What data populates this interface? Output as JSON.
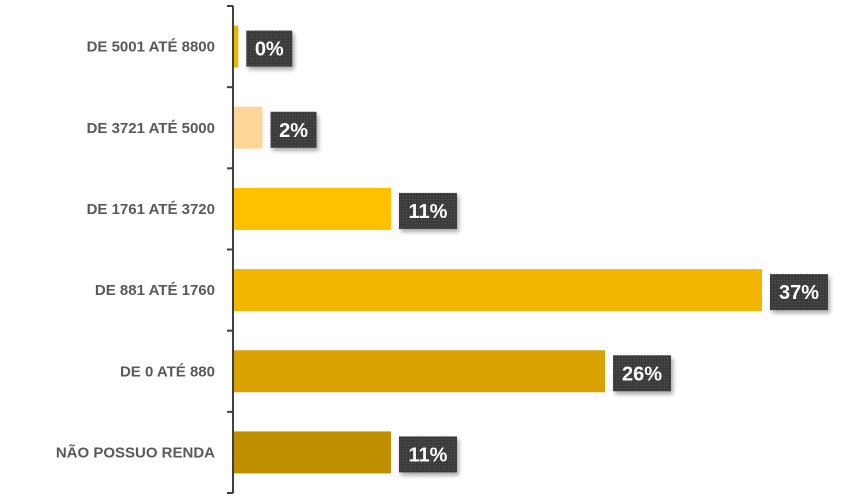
{
  "chart_data": {
    "type": "bar",
    "orientation": "horizontal",
    "title": "",
    "xlabel": "",
    "ylabel": "",
    "categories": [
      "DE 5001 ATÉ 8800",
      "DE 3721 ATÉ 5000",
      "DE 1761 ATÉ 3720",
      "DE 881 ATÉ 1760",
      "DE 0 ATÉ 880",
      "NÃO POSSUO RENDA"
    ],
    "values": [
      0.3,
      2,
      11,
      37,
      26,
      11
    ],
    "data_labels": [
      "0%",
      "2%",
      "11%",
      "37%",
      "26%",
      "11%"
    ],
    "bar_colors": [
      "#F0B400",
      "#FFD699",
      "#FFC000",
      "#F2B500",
      "#D9A200",
      "#BF8F00"
    ],
    "label_box_color": "#404040",
    "xlim": [
      0,
      37
    ],
    "grid": false,
    "legend": "none"
  }
}
